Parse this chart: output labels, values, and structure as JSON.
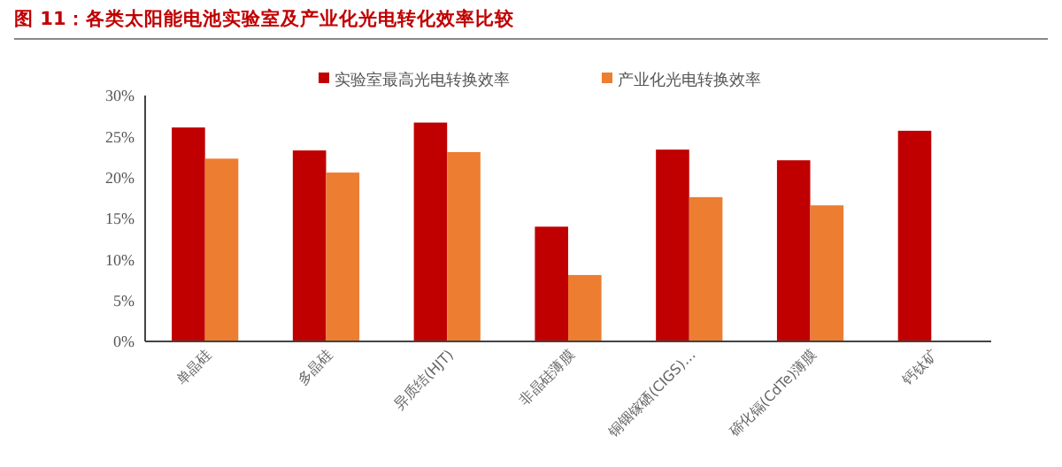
{
  "chart_data": {
    "type": "bar",
    "title": "图 11：各类太阳能电池实验室及产业化光电转化效率比较",
    "categories": [
      "单晶硅",
      "多晶硅",
      "异质结(HJT)",
      "非晶硅薄膜",
      "铜铟镓硒(CIGS)…",
      "碲化镉(CdTe)薄膜",
      "钙钛矿"
    ],
    "series": [
      {
        "name": "实验室最高光电转换效率",
        "color": "#c00000",
        "values": [
          26.1,
          23.3,
          26.7,
          14.0,
          23.4,
          22.1,
          25.7
        ]
      },
      {
        "name": "产业化光电转换效率",
        "color": "#ed7d31",
        "values": [
          22.3,
          20.6,
          23.1,
          8.1,
          17.6,
          16.6,
          null
        ]
      }
    ],
    "ylim": [
      0,
      30
    ],
    "yticks": [
      {
        "value": 0,
        "label": "0%"
      },
      {
        "value": 5,
        "label": "5%"
      },
      {
        "value": 10,
        "label": "10%"
      },
      {
        "value": 15,
        "label": "15%"
      },
      {
        "value": 20,
        "label": "20%"
      },
      {
        "value": 25,
        "label": "25%"
      },
      {
        "value": 30,
        "label": "30%"
      }
    ],
    "grid": false,
    "legend": "top"
  }
}
